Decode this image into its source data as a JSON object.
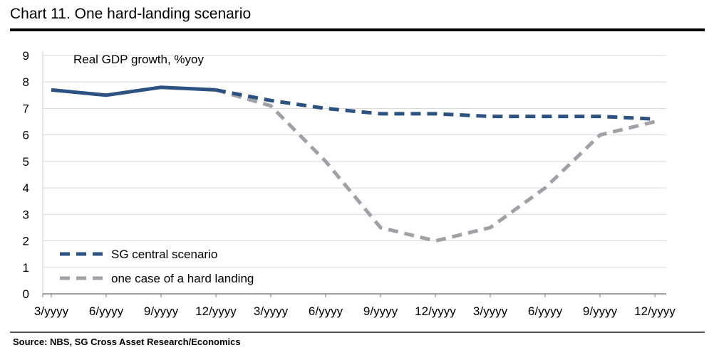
{
  "title": "Chart 11. One hard-landing scenario",
  "source": "Source: NBS, SG Cross Asset Research/Economics",
  "colors": {
    "central": "#2c5282",
    "hard": "#a0a0a6",
    "grid": "#d9d9d9"
  },
  "chart_data": {
    "type": "line",
    "annotation": "Real GDP growth, %yoy",
    "xlabel": "",
    "ylabel": "",
    "ylim": [
      0,
      9
    ],
    "yticks": [
      "0",
      "1",
      "2",
      "3",
      "4",
      "5",
      "6",
      "7",
      "8",
      "9"
    ],
    "categories": [
      "3/yyyy",
      "6/yyyy",
      "9/yyyy",
      "12/yyyy",
      "3/yyyy",
      "6/yyyy",
      "9/yyyy",
      "12/yyyy",
      "3/yyyy",
      "6/yyyy",
      "9/yyyy",
      "12/yyyy"
    ],
    "grid": true,
    "legend_position": "bottom-left",
    "series": [
      {
        "name": "SG central scenario",
        "style": "dashed",
        "color": "#2c5282",
        "values": [
          7.7,
          7.5,
          7.8,
          7.7,
          7.3,
          7.0,
          6.8,
          6.8,
          6.7,
          6.7,
          6.7,
          6.6
        ]
      },
      {
        "name": "one case of a hard landing",
        "style": "dashed",
        "color": "#a0a0a6",
        "values": [
          null,
          null,
          null,
          7.7,
          7.1,
          5.0,
          2.5,
          2.0,
          2.5,
          4.0,
          6.0,
          6.5
        ]
      }
    ],
    "actual": {
      "name": "",
      "color": "#2c5282",
      "values": [
        7.7,
        7.5,
        7.8,
        7.7
      ]
    }
  }
}
